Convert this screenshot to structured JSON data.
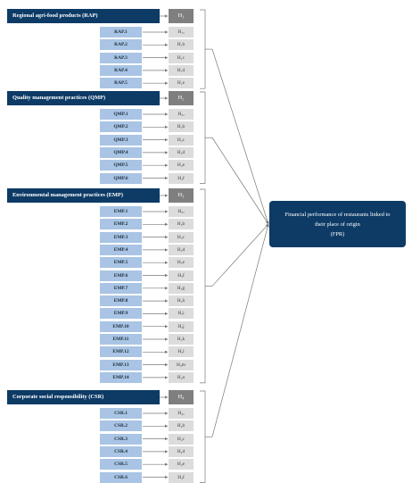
{
  "groups": [
    {
      "title": "Regional agri-food products (RAP)",
      "hypothesis": "H₁",
      "items": [
        {
          "label": "RAP.1",
          "h": "H₁ₐ"
        },
        {
          "label": "RAP.2",
          "h": "H₁b"
        },
        {
          "label": "RAP.3",
          "h": "H₁c"
        },
        {
          "label": "RAP.4",
          "h": "H₁d"
        },
        {
          "label": "RAP.5",
          "h": "H₁e"
        }
      ]
    },
    {
      "title": "Quality management practices (QMP)",
      "hypothesis": "H₂",
      "items": [
        {
          "label": "QMP.1",
          "h": "H₂ₐ"
        },
        {
          "label": "QMP.2",
          "h": "H₂b"
        },
        {
          "label": "QMP.3",
          "h": "H₂c"
        },
        {
          "label": "QMP.4",
          "h": "H₂d"
        },
        {
          "label": "QMP.5",
          "h": "H₂e"
        },
        {
          "label": "QMP.6",
          "h": "H₂f"
        }
      ]
    },
    {
      "title": "Environmental management practices (EMP)",
      "hypothesis": "H₃",
      "items": [
        {
          "label": "EMP.1",
          "h": "H₃ₐ"
        },
        {
          "label": "EMP.2",
          "h": "H₃b"
        },
        {
          "label": "EMP.3",
          "h": "H₃c"
        },
        {
          "label": "EMP.4",
          "h": "H₃d"
        },
        {
          "label": "EMP.5",
          "h": "H₃e"
        },
        {
          "label": "EMP.6",
          "h": "H₃f"
        },
        {
          "label": "EMP.7",
          "h": "H₃g"
        },
        {
          "label": "EMP.8",
          "h": "H₃h"
        },
        {
          "label": "EMP.9",
          "h": "H₃i"
        },
        {
          "label": "EMP.10",
          "h": "H₃j"
        },
        {
          "label": "EMP.11",
          "h": "H₃k"
        },
        {
          "label": "EMP.12",
          "h": "H₃l"
        },
        {
          "label": "EMP.13",
          "h": "H₃m"
        },
        {
          "label": "EMP.14",
          "h": "H₃n"
        }
      ]
    },
    {
      "title": "Corporate social responsibility (CSR)",
      "hypothesis": "H₄",
      "items": [
        {
          "label": "CSR.1",
          "h": "H₄ₐ"
        },
        {
          "label": "CSR.2",
          "h": "H₄b"
        },
        {
          "label": "CSR.3",
          "h": "H₄c"
        },
        {
          "label": "CSR.4",
          "h": "H₄d"
        },
        {
          "label": "CSR.5",
          "h": "H₄e"
        },
        {
          "label": "CSR.6",
          "h": "H₄f"
        }
      ]
    }
  ],
  "target": {
    "line1": "Financial performance of restaurants linked to",
    "line2": "their place of origin",
    "line3": "(FPR)"
  },
  "colors": {
    "header": "#0d3b66",
    "item": "#a9c4e4",
    "hypothesis_main": "#7f7f7f",
    "hypothesis_sub": "#dcdcdc",
    "line": "#7a7a7a"
  }
}
